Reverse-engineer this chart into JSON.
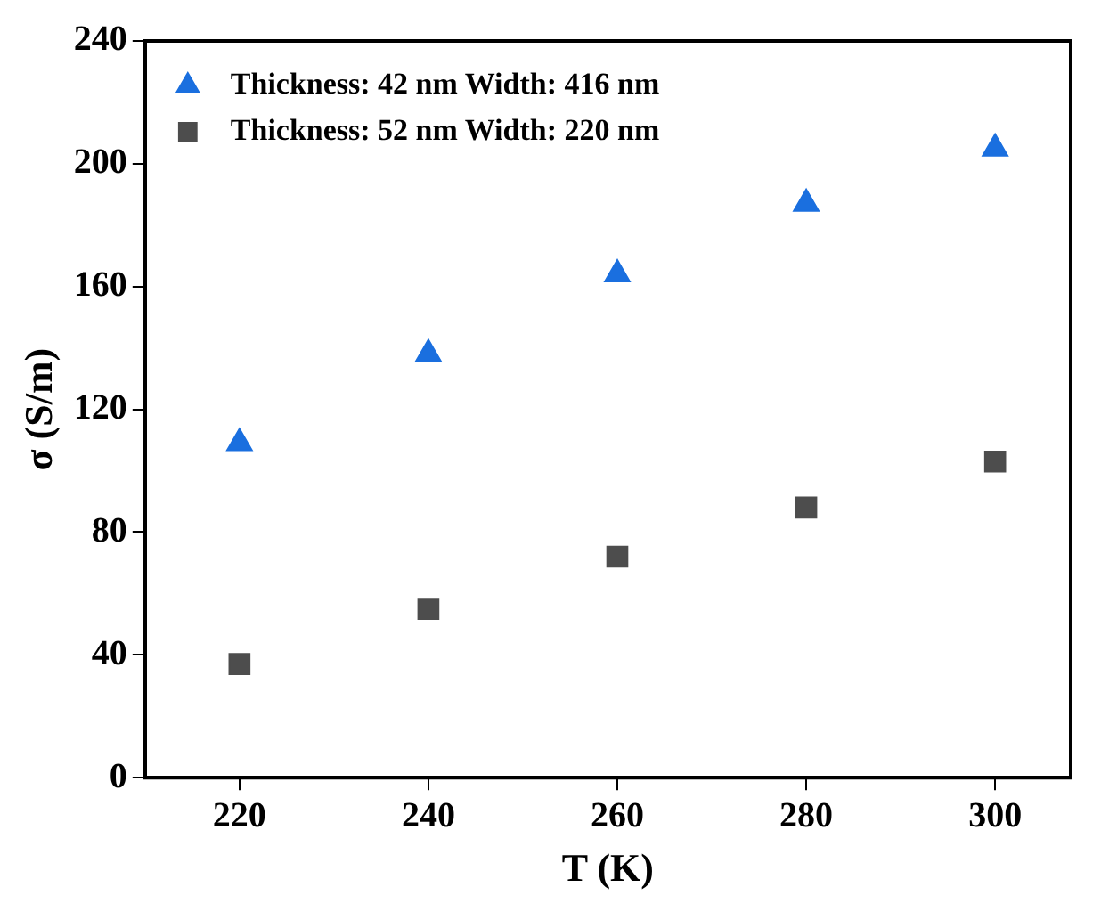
{
  "chart_data": {
    "type": "scatter",
    "xlabel": "T (K)",
    "ylabel": "σ (S/m)",
    "x": [
      220,
      240,
      260,
      280,
      300
    ],
    "series": [
      {
        "name": "Thickness: 42 nm Width: 416 nm",
        "color": "#1a6fdf",
        "marker": "triangle",
        "values": [
          109,
          138,
          164,
          187,
          205
        ]
      },
      {
        "name": "Thickness: 52 nm Width: 220 nm",
        "color": "#4d4d4d",
        "marker": "square",
        "values": [
          37,
          55,
          72,
          88,
          103
        ]
      }
    ],
    "xlim": [
      210,
      308
    ],
    "xticks": [
      220,
      240,
      260,
      280,
      300
    ],
    "ylim": [
      0,
      240
    ],
    "yticks": [
      0,
      40,
      80,
      120,
      160,
      200,
      240
    ],
    "grid": false,
    "legend": "top left"
  }
}
